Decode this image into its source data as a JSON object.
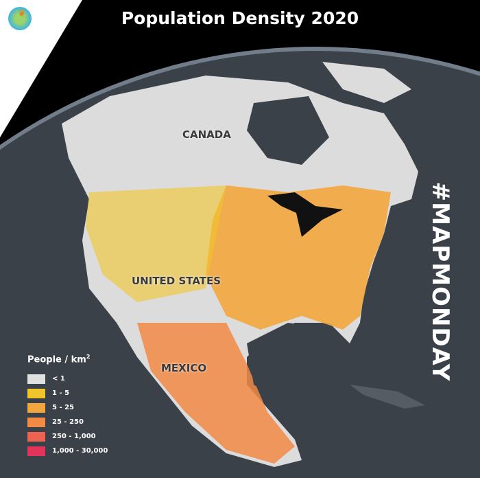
{
  "title": "Population Density 2020",
  "hashtag": "#MAPMONDAY",
  "countries": [
    "CANADA",
    "UNITED STATES",
    "MEXICO"
  ],
  "legend": {
    "title": "People / km",
    "title_sup": "2",
    "items": [
      {
        "label": "< 1",
        "color": "#e0e0e0"
      },
      {
        "label": "1 - 5",
        "color": "#f2c42c"
      },
      {
        "label": "5 - 25",
        "color": "#f3a63d"
      },
      {
        "label": "25 - 250",
        "color": "#f18a45"
      },
      {
        "label": "250 - 1,000",
        "color": "#ec6450"
      },
      {
        "label": "1,000 - 30,000",
        "color": "#e2345a"
      }
    ]
  },
  "colors": {
    "ocean": "#3b4148",
    "land": "#dcdcdc",
    "atmosphere": "#6aa6e8",
    "background": "#000000"
  }
}
